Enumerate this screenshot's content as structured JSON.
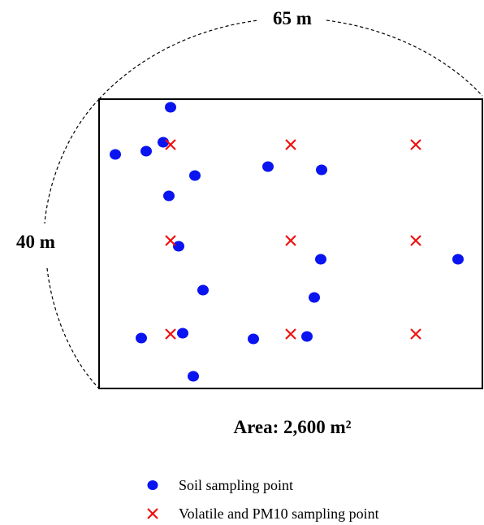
{
  "dimensions": {
    "width_label": "65 m",
    "height_label": "40 m"
  },
  "area_label": "Area: 2,600 m²",
  "legend": [
    {
      "label": "Soil sampling point"
    },
    {
      "label": "Volatile and PM10 sampling point"
    }
  ]
}
